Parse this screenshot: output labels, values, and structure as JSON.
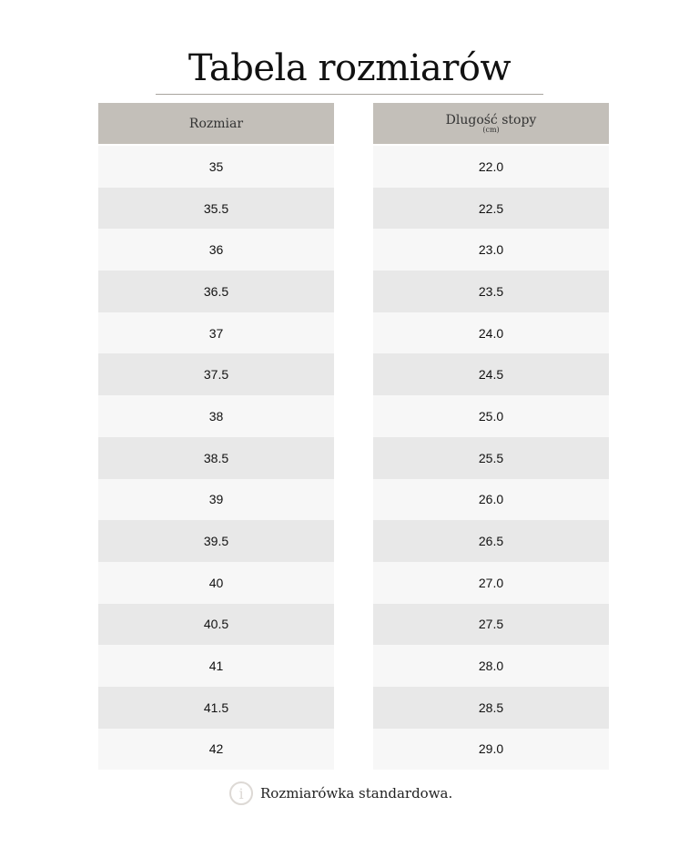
{
  "title": "Tabela rozmiarów",
  "headers": {
    "size": "Rozmiar",
    "length": "Dlugość stopy",
    "length_unit": "(cm)"
  },
  "sizes": [
    "35",
    "35.5",
    "36",
    "36.5",
    "37",
    "37.5",
    "38",
    "38.5",
    "39",
    "39.5",
    "40",
    "40.5",
    "41",
    "41.5",
    "42"
  ],
  "lengths": [
    "22.0",
    "22.5",
    "23.0",
    "23.5",
    "24.0",
    "24.5",
    "25.0",
    "25.5",
    "26.0",
    "26.5",
    "27.0",
    "27.5",
    "28.0",
    "28.5",
    "29.0"
  ],
  "note": {
    "icon": "info-icon",
    "text": "Rozmiarówka standardowa."
  },
  "colors": {
    "header": "#c3bfb9",
    "row_light": "#f7f7f7",
    "row_dark": "#e8e8e8"
  }
}
